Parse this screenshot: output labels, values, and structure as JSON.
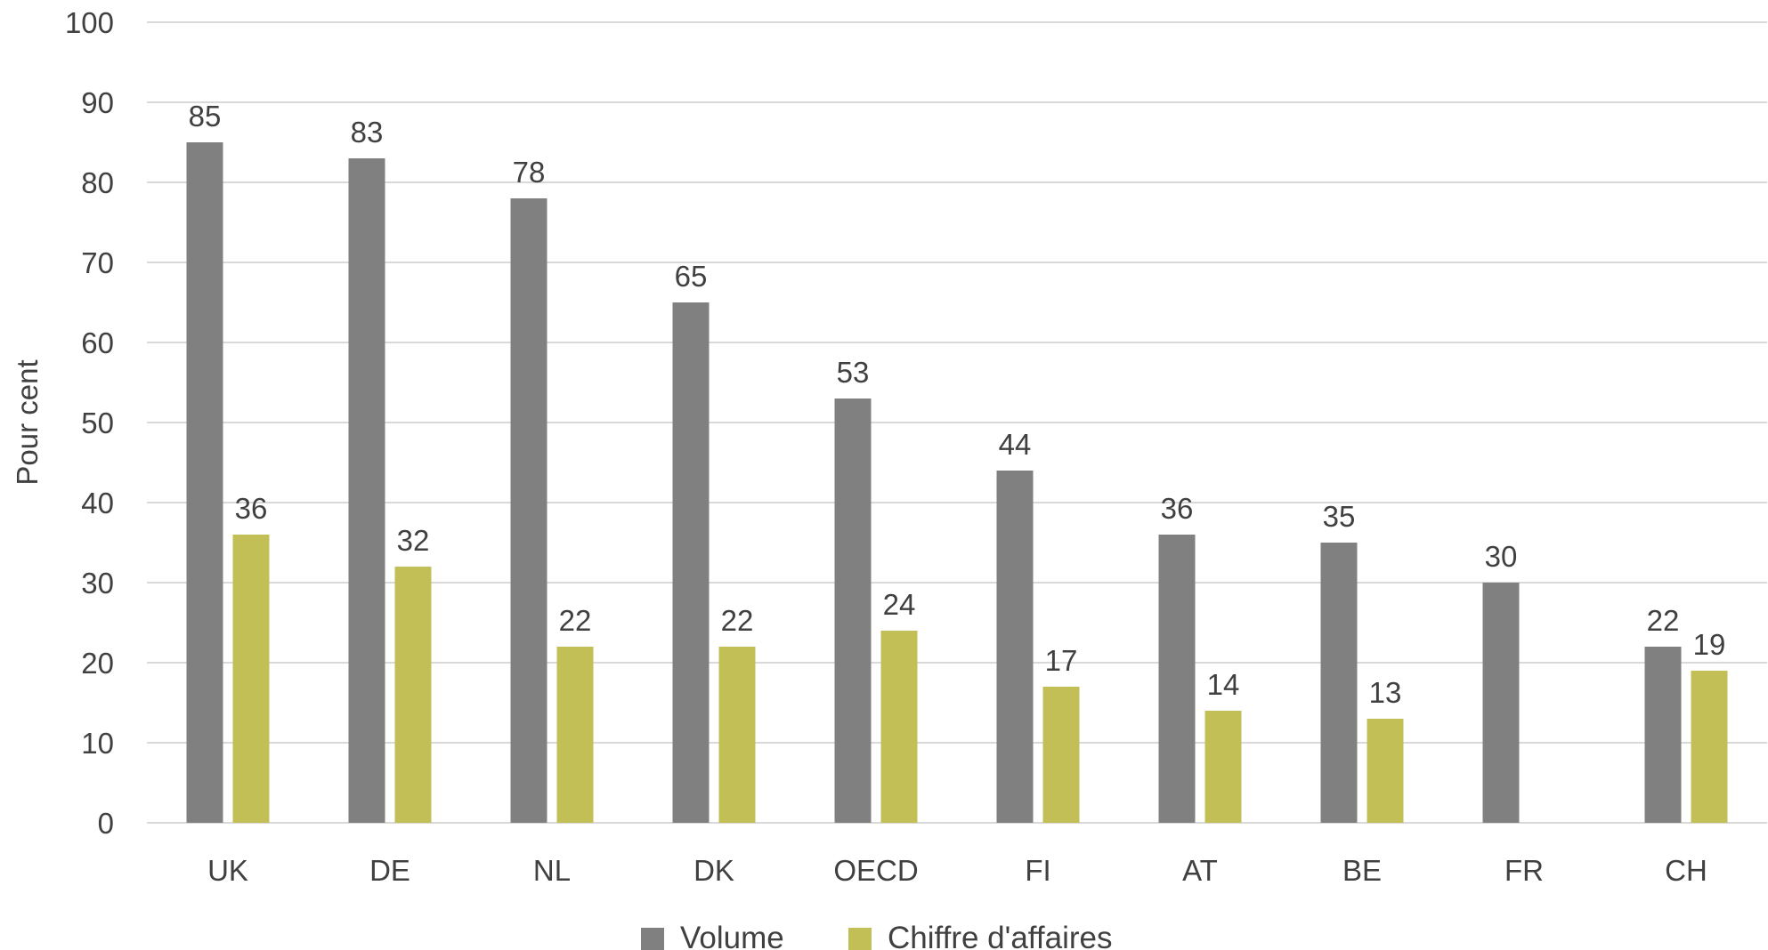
{
  "chart_data": {
    "type": "bar",
    "categories": [
      "UK",
      "DE",
      "NL",
      "DK",
      "OECD",
      "FI",
      "AT",
      "BE",
      "FR",
      "CH"
    ],
    "series": [
      {
        "name": "Volume",
        "color": "#808080",
        "values": [
          85,
          83,
          78,
          65,
          53,
          44,
          36,
          35,
          30,
          22
        ],
        "labels": [
          "85",
          "83",
          "78",
          "65",
          "53",
          "44",
          "36",
          "35",
          "30",
          "22"
        ]
      },
      {
        "name": "Chiffre d'affaires",
        "color": "#c3bf57",
        "values": [
          36,
          32,
          22,
          22,
          24,
          17,
          14,
          13,
          null,
          19
        ],
        "labels": [
          "36",
          "32",
          "22",
          "22",
          "24",
          "17",
          "14",
          "13",
          "",
          "19"
        ]
      }
    ],
    "ylabel": "Pour cent",
    "xlabel": "",
    "ylim": [
      0,
      100
    ],
    "yticks": [
      "0",
      "10",
      "20",
      "30",
      "40",
      "50",
      "60",
      "70",
      "80",
      "90",
      "100"
    ],
    "grid": true,
    "legend_position": "bottom"
  }
}
